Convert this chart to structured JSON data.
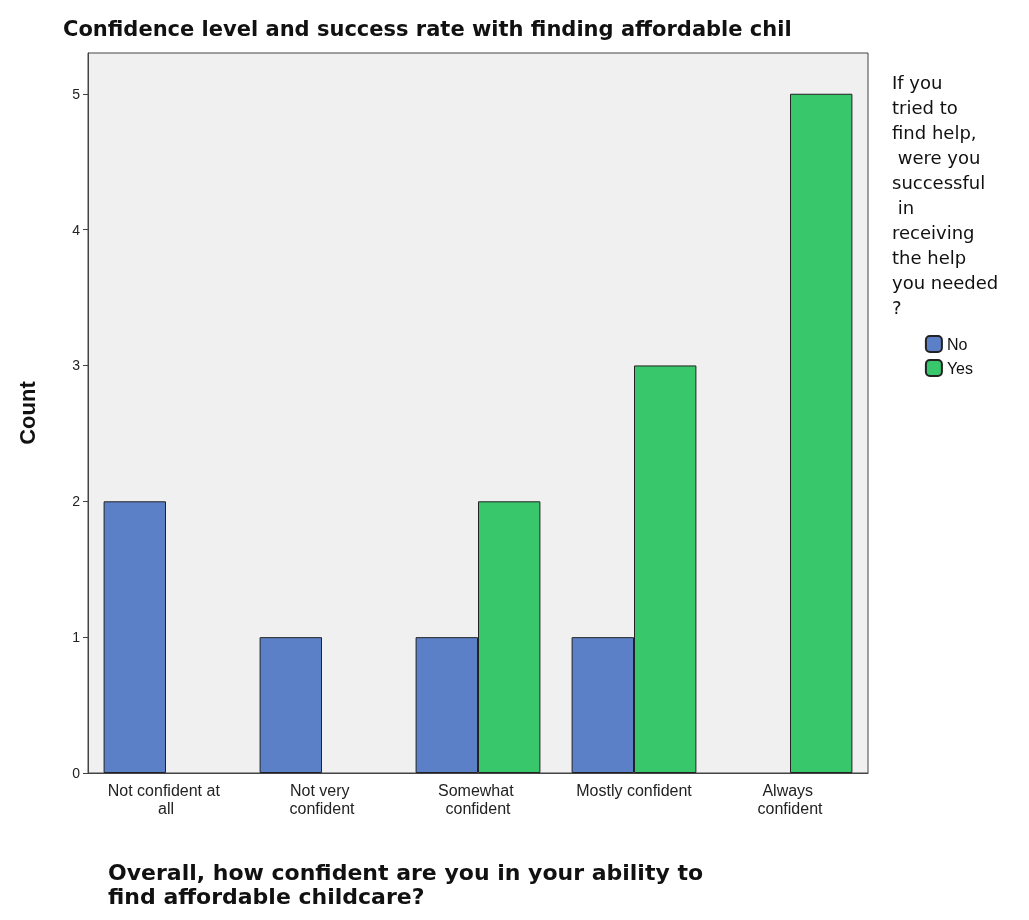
{
  "chart_data": {
    "type": "bar",
    "title": "Confidence level and success rate with finding affordable chil",
    "xlabel": "Overall, how confident are you in your ability to find affordable childcare?",
    "ylabel": "Count",
    "legend_title": "If you tried to find help, were you successful in receiving the help you needed?",
    "categories": [
      "Not confident at all",
      "Not very confident",
      "Somewhat confident",
      "Mostly confident",
      "Always confident"
    ],
    "series": [
      {
        "name": "No",
        "color": "#5b80c8",
        "values": [
          2,
          1,
          1,
          1,
          null
        ]
      },
      {
        "name": "Yes",
        "color": "#38c76a",
        "values": [
          null,
          null,
          2,
          3,
          5
        ]
      }
    ],
    "ylim": [
      0,
      5.3
    ],
    "yticks": [
      0,
      1,
      2,
      3,
      4,
      5
    ],
    "grid": false,
    "legend": "right"
  }
}
